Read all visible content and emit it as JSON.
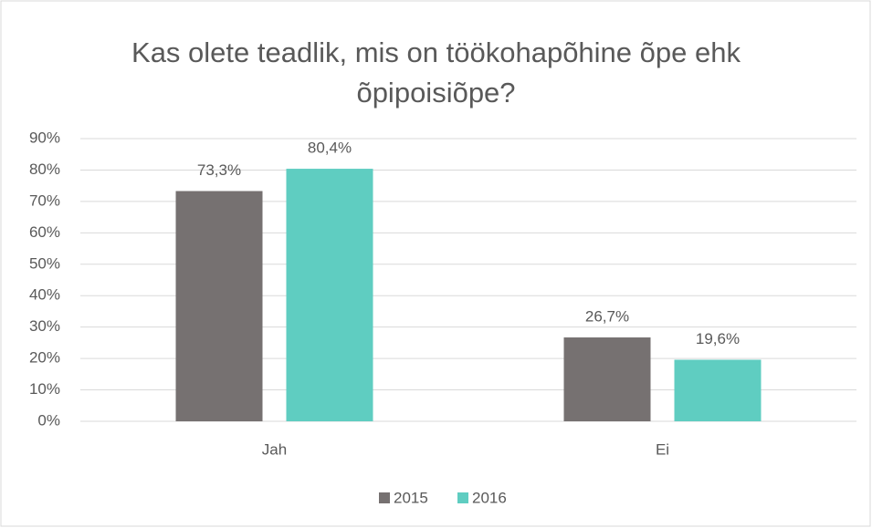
{
  "chart_data": {
    "type": "bar",
    "title": "Kas olete teadlik, mis on töökohapõhine õpe ehk õpipoisiõpe?",
    "categories": [
      "Jah",
      "Ei"
    ],
    "series": [
      {
        "name": "2015",
        "color": "#767171",
        "values": [
          73.3,
          26.7
        ],
        "value_labels": [
          "73,3%",
          "26,7%"
        ]
      },
      {
        "name": "2016",
        "color": "#5fcdc1",
        "values": [
          80.4,
          19.6
        ],
        "value_labels": [
          "80,4%",
          "19,6%"
        ]
      }
    ],
    "ylim": [
      0,
      90
    ],
    "yticks": [
      {
        "value": 0,
        "label": "0%"
      },
      {
        "value": 10,
        "label": "10%"
      },
      {
        "value": 20,
        "label": "20%"
      },
      {
        "value": 30,
        "label": "30%"
      },
      {
        "value": 40,
        "label": "40%"
      },
      {
        "value": 50,
        "label": "50%"
      },
      {
        "value": 60,
        "label": "60%"
      },
      {
        "value": 70,
        "label": "70%"
      },
      {
        "value": 80,
        "label": "80%"
      },
      {
        "value": 90,
        "label": "90%"
      }
    ],
    "grid": true,
    "legend": "bottom"
  }
}
